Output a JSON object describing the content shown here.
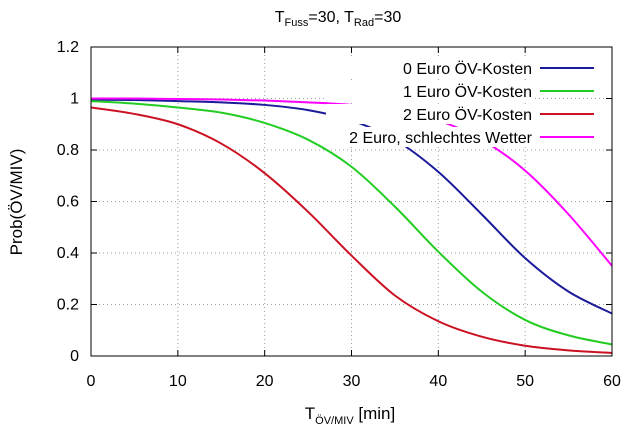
{
  "chart_data": {
    "type": "line",
    "title": {
      "t_fuss_base": "T",
      "t_fuss_sub": "Fuss",
      "t_fuss_value": "=30, ",
      "t_rad_base": "T",
      "t_rad_sub": "Rad",
      "t_rad_value": "=30"
    },
    "xlabel": {
      "base": "T",
      "sub": "ÖV/MIV",
      "unit": " [min]"
    },
    "ylabel": "Prob(ÖV/MIV)",
    "xlim": [
      0,
      60
    ],
    "ylim": [
      0,
      1.2
    ],
    "x_ticks": [
      0,
      10,
      20,
      30,
      40,
      50,
      60
    ],
    "y_ticks": [
      0,
      0.2,
      0.4,
      0.6,
      0.8,
      1,
      1.2
    ],
    "y_tick_labels": [
      "0",
      "0.2",
      "0.4",
      "0.6",
      "0.8",
      "1",
      "1.2"
    ],
    "grid": true,
    "grid_style": "dotted",
    "legend_position": "top-right",
    "x": [
      0,
      5,
      10,
      15,
      20,
      25,
      30,
      35,
      40,
      45,
      50,
      55,
      60
    ],
    "series": [
      {
        "name": "0 Euro ÖV-Kosten",
        "color": "#1a1a9a",
        "values": [
          0.995,
          0.994,
          0.99,
          0.985,
          0.975,
          0.955,
          0.915,
          0.84,
          0.715,
          0.55,
          0.38,
          0.25,
          0.165
        ]
      },
      {
        "name": "1 Euro ÖV-Kosten",
        "color": "#22cc22",
        "values": [
          0.99,
          0.98,
          0.965,
          0.945,
          0.905,
          0.84,
          0.735,
          0.58,
          0.405,
          0.25,
          0.14,
          0.08,
          0.045
        ]
      },
      {
        "name": "2 Euro ÖV-Kosten",
        "color": "#cc1122",
        "values": [
          0.965,
          0.94,
          0.9,
          0.825,
          0.71,
          0.56,
          0.39,
          0.235,
          0.135,
          0.075,
          0.04,
          0.022,
          0.012
        ]
      },
      {
        "name": "2 Euro, schlechtes Wetter",
        "color": "#ff00ff",
        "values": [
          1.0,
          1.0,
          0.998,
          0.996,
          0.992,
          0.985,
          0.975,
          0.955,
          0.915,
          0.84,
          0.72,
          0.55,
          0.35
        ]
      }
    ]
  }
}
